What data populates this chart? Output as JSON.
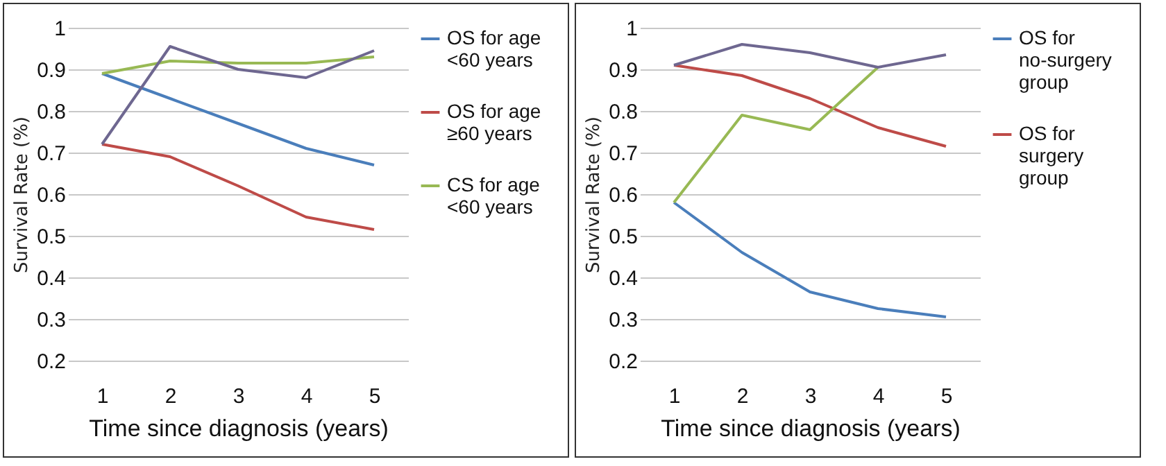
{
  "chart_data": [
    {
      "type": "line",
      "xlabel": "Time since diagnosis (years)",
      "ylabel": "Survival Rate (%)",
      "categories": [
        "1",
        "2",
        "3",
        "4",
        "5"
      ],
      "ylim": [
        0.2,
        1
      ],
      "yticks": [
        0.2,
        0.3,
        0.4,
        0.5,
        0.6,
        0.7,
        0.8,
        0.9,
        1
      ],
      "grid": "y",
      "legend": "right",
      "series": [
        {
          "name": "OS for age <60 years",
          "color": "#4a7ebb",
          "values": [
            0.89,
            0.83,
            0.77,
            0.71,
            0.67
          ]
        },
        {
          "name": "OS for age ≥60 years",
          "color": "#be4b48",
          "values": [
            0.72,
            0.69,
            0.62,
            0.545,
            0.515
          ]
        },
        {
          "name": "CS for age <60 years",
          "color": "#98b954",
          "values": [
            0.89,
            0.92,
            0.915,
            0.915,
            0.93
          ]
        },
        {
          "color": "#6e6790",
          "values": [
            0.72,
            0.955,
            0.9,
            0.88,
            0.945
          ]
        }
      ]
    },
    {
      "type": "line",
      "xlabel": "Time since diagnosis (years)",
      "ylabel": "Survival Rate (%)",
      "categories": [
        "1",
        "2",
        "3",
        "4",
        "5"
      ],
      "ylim": [
        0.2,
        1
      ],
      "yticks": [
        0.2,
        0.3,
        0.4,
        0.5,
        0.6,
        0.7,
        0.8,
        0.9,
        1
      ],
      "grid": "y",
      "legend": "right",
      "series": [
        {
          "name": "OS for no-surgery group",
          "color": "#4a7ebb",
          "values": [
            0.58,
            0.46,
            0.365,
            0.325,
            0.305
          ]
        },
        {
          "name": "OS for surgery group",
          "color": "#be4b48",
          "values": [
            0.91,
            0.885,
            0.83,
            0.76,
            0.715
          ]
        },
        {
          "color": "#98b954",
          "values": [
            0.58,
            0.79,
            0.755,
            0.905,
            null
          ]
        },
        {
          "color": "#6e6790",
          "values": [
            0.91,
            0.96,
            0.94,
            0.905,
            0.935
          ]
        }
      ]
    }
  ]
}
